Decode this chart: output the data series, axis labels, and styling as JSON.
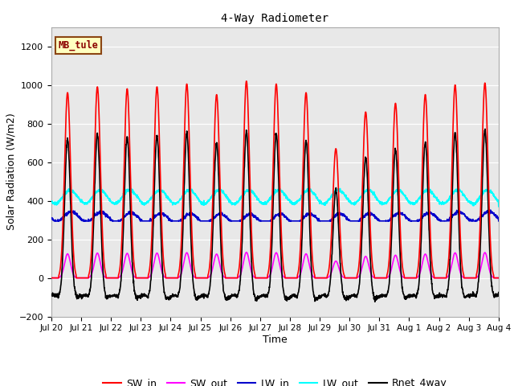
{
  "title": "4-Way Radiometer",
  "xlabel": "Time",
  "ylabel": "Solar Radiation (W/m2)",
  "ylim": [
    -200,
    1300
  ],
  "yticks": [
    -200,
    0,
    200,
    400,
    600,
    800,
    1000,
    1200
  ],
  "num_days": 15,
  "station_label": "MB_tule",
  "fig_bg_color": "#ffffff",
  "plot_bg_color": "#e8e8e8",
  "lines": {
    "SW_in": {
      "color": "#ff0000",
      "lw": 1.2
    },
    "SW_out": {
      "color": "#ff00ff",
      "lw": 1.2
    },
    "LW_in": {
      "color": "#0000cc",
      "lw": 1.2
    },
    "LW_out": {
      "color": "#00ffff",
      "lw": 1.2
    },
    "Rnet_4way": {
      "color": "#000000",
      "lw": 1.2
    }
  },
  "x_tick_labels": [
    "Jul 20",
    "Jul 21",
    "Jul 22",
    "Jul 23",
    "Jul 24",
    "Jul 25",
    "Jul 26",
    "Jul 27",
    "Jul 28",
    "Jul 29",
    "Jul 30",
    "Jul 31",
    "Aug 1",
    "Aug 2",
    "Aug 3",
    "Aug 4"
  ],
  "SW_in_peaks": [
    960,
    990,
    980,
    990,
    1005,
    950,
    1020,
    1005,
    960,
    670,
    860,
    905,
    950,
    1000,
    1010
  ],
  "LW_out_base": 430,
  "LW_in_base": 340,
  "night_rnet": -80
}
